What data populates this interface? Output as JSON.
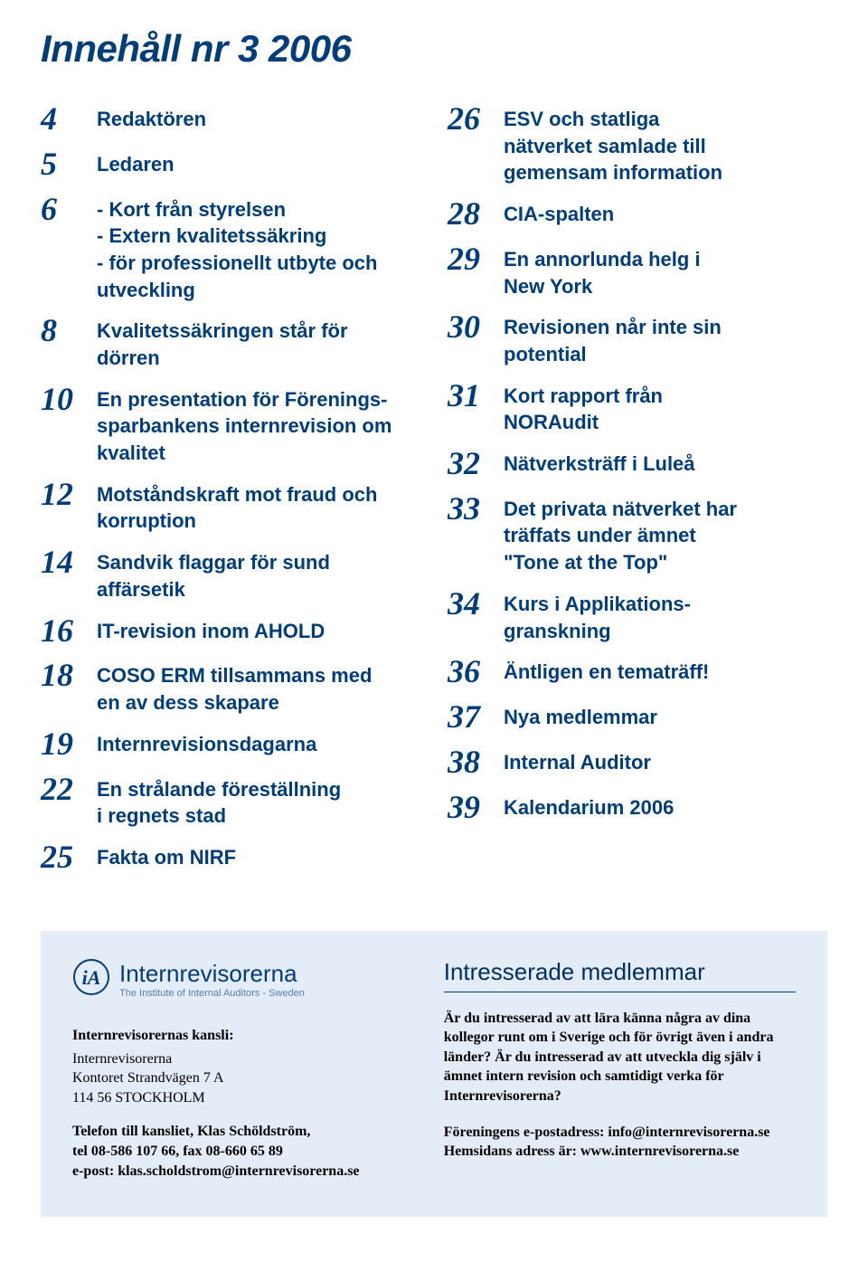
{
  "title": "Innehåll nr 3 2006",
  "toc_left": [
    {
      "num": "4",
      "lines": [
        "Redaktören"
      ]
    },
    {
      "num": "5",
      "lines": [
        "Ledaren"
      ]
    },
    {
      "num": "6",
      "lines": [
        "- Kort från styrelsen",
        "- Extern kvalitetssäkring",
        "- för professionellt utbyte och",
        "  utveckling"
      ]
    },
    {
      "num": "8",
      "lines": [
        "Kvalitetssäkringen står för",
        "dörren"
      ]
    },
    {
      "num": "10",
      "lines": [
        "En presentation för Förenings-",
        "sparbankens internrevision om",
        "kvalitet"
      ]
    },
    {
      "num": "12",
      "lines": [
        "Motståndskraft mot fraud och",
        "korruption"
      ]
    },
    {
      "num": "14",
      "lines": [
        "Sandvik flaggar för sund",
        "affärsetik"
      ]
    },
    {
      "num": "16",
      "lines": [
        "IT-revision inom AHOLD"
      ]
    },
    {
      "num": "18",
      "lines": [
        "COSO ERM tillsammans med",
        "en av dess skapare"
      ]
    },
    {
      "num": "19",
      "lines": [
        "Internrevisionsdagarna"
      ]
    },
    {
      "num": "22",
      "lines": [
        "En strålande föreställning",
        "i regnets stad"
      ]
    },
    {
      "num": "25",
      "lines": [
        "Fakta om NIRF"
      ]
    }
  ],
  "toc_right": [
    {
      "num": "26",
      "lines": [
        "ESV och statliga",
        "nätverket samlade till",
        "gemensam information"
      ]
    },
    {
      "num": "28",
      "lines": [
        "CIA-spalten"
      ]
    },
    {
      "num": "29",
      "lines": [
        "En annorlunda helg i",
        "New York"
      ]
    },
    {
      "num": "30",
      "lines": [
        "Revisionen når inte sin",
        "potential"
      ]
    },
    {
      "num": "31",
      "lines": [
        "Kort rapport från",
        "NORAudit"
      ]
    },
    {
      "num": "32",
      "lines": [
        "Nätverksträff i Luleå"
      ]
    },
    {
      "num": "33",
      "lines": [
        "Det privata nätverket har",
        "träffats under ämnet",
        "\"Tone at the Top\""
      ]
    },
    {
      "num": "34",
      "lines": [
        "Kurs i Applikations-",
        "granskning"
      ]
    },
    {
      "num": "36",
      "lines": [
        "Äntligen en tematräff!"
      ]
    },
    {
      "num": "37",
      "lines": [
        "Nya medlemmar"
      ]
    },
    {
      "num": "38",
      "lines": [
        "Internal Auditor"
      ]
    },
    {
      "num": "39",
      "lines": [
        "Kalendarium 2006"
      ]
    }
  ],
  "footer": {
    "logo_main": "Internrevisorerna",
    "logo_sub": "The Institute of Internal Auditors - Sweden",
    "kansli_heading": "Internrevisorernas kansli:",
    "kansli_addr_l1": "Internrevisorerna",
    "kansli_addr_l2": "Kontoret Strandvägen 7 A",
    "kansli_addr_l3": "114 56 STOCKHOLM",
    "kansli_tel_l1": "Telefon till kansliet, Klas Schöldström,",
    "kansli_tel_l2": "tel 08-586 107 66, fax 08-660 65 89",
    "kansli_tel_l3": "e-post: klas.scholdstrom@internrevisorerna.se",
    "members_heading": "Intresserade medlemmar",
    "members_p1": "Är du intresserad av att lära känna några av dina kollegor runt om i Sverige och för övrigt även i andra länder? Är du intresserad av att utveckla dig själv i ämnet intern revision och samtidigt verka för Internrevisorerna?",
    "members_p2_l1": "Föreningens e-postadress: info@internrevisorerna.se",
    "members_p2_l2": "Hemsidans adress är: www.internrevisorerna.se"
  },
  "colors": {
    "primary": "#003d7a",
    "footer_bg": "#e4edf7",
    "black": "#000000",
    "logo_sub": "#5a7ca8"
  }
}
